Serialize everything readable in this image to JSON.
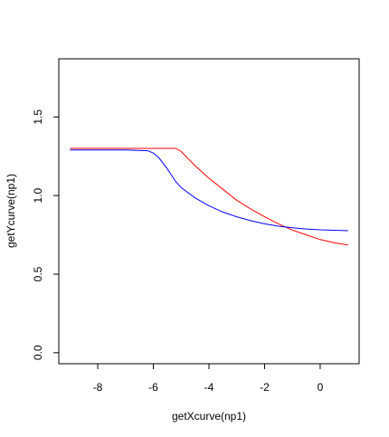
{
  "chart_data": {
    "type": "line",
    "title": "",
    "xlabel": "getXcurve(np1)",
    "ylabel": "getYcurve(np1)",
    "xlim": [
      -9.4,
      1.4
    ],
    "ylim": [
      -0.07,
      1.87
    ],
    "xticks": [
      -8,
      -6,
      -4,
      -2,
      0
    ],
    "yticks": [
      0.0,
      0.5,
      1.0,
      1.5
    ],
    "xtick_labels": [
      "-8",
      "-6",
      "-4",
      "-2",
      "0"
    ],
    "ytick_labels": [
      "0.0",
      "0.5",
      "1.0",
      "1.5"
    ],
    "grid": false,
    "legend": "none",
    "series": [
      {
        "color": "#ff0000",
        "x": [
          -9.0,
          -8.0,
          -7.0,
          -6.0,
          -5.2,
          -5.0,
          -4.5,
          -4.0,
          -3.5,
          -3.0,
          -2.5,
          -2.0,
          -1.5,
          -1.0,
          -0.5,
          0.0,
          0.5,
          1.0
        ],
        "y": [
          1.3,
          1.3,
          1.3,
          1.3,
          1.3,
          1.28,
          1.19,
          1.11,
          1.04,
          0.97,
          0.915,
          0.865,
          0.82,
          0.78,
          0.75,
          0.72,
          0.7,
          0.685
        ]
      },
      {
        "color": "#0000ff",
        "x": [
          -9.0,
          -8.0,
          -7.0,
          -6.2,
          -6.0,
          -5.8,
          -5.5,
          -5.2,
          -5.0,
          -4.5,
          -4.0,
          -3.5,
          -3.0,
          -2.5,
          -2.0,
          -1.5,
          -1.0,
          -0.5,
          0.0,
          0.5,
          1.0
        ],
        "y": [
          1.29,
          1.29,
          1.29,
          1.285,
          1.27,
          1.24,
          1.17,
          1.09,
          1.05,
          0.985,
          0.935,
          0.895,
          0.865,
          0.84,
          0.82,
          0.805,
          0.795,
          0.787,
          0.782,
          0.779,
          0.776
        ]
      }
    ]
  }
}
